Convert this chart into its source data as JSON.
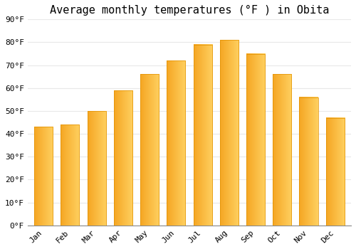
{
  "title": "Average monthly temperatures (°F ) in Obita",
  "months": [
    "Jan",
    "Feb",
    "Mar",
    "Apr",
    "May",
    "Jun",
    "Jul",
    "Aug",
    "Sep",
    "Oct",
    "Nov",
    "Dec"
  ],
  "values": [
    43,
    44,
    50,
    59,
    66,
    72,
    79,
    81,
    75,
    66,
    56,
    47
  ],
  "bar_color_left": "#F5A623",
  "bar_color_right": "#FFD060",
  "bar_color_mid": "#FFAA00",
  "background_color": "#FFFFFF",
  "grid_color": "#e8e8e8",
  "ylim": [
    0,
    90
  ],
  "yticks": [
    0,
    10,
    20,
    30,
    40,
    50,
    60,
    70,
    80,
    90
  ],
  "title_fontsize": 11,
  "tick_fontsize": 8,
  "font_family": "monospace"
}
